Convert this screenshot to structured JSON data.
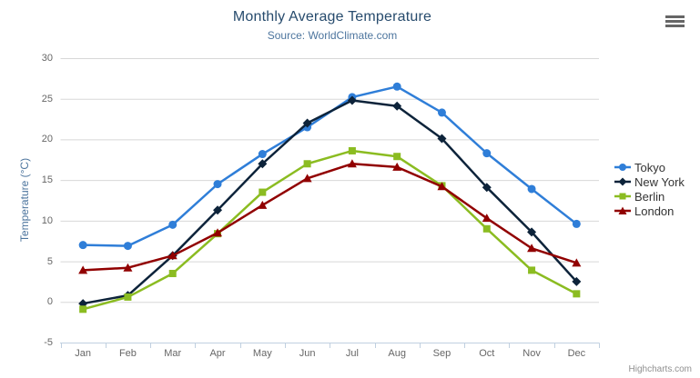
{
  "chart_data": {
    "type": "line",
    "title": "Monthly Average Temperature",
    "subtitle": "Source: WorldClimate.com",
    "categories": [
      "Jan",
      "Feb",
      "Mar",
      "Apr",
      "May",
      "Jun",
      "Jul",
      "Aug",
      "Sep",
      "Oct",
      "Nov",
      "Dec"
    ],
    "series": [
      {
        "name": "Tokyo",
        "color": "#2f7ed8",
        "marker": "circle",
        "values": [
          7.0,
          6.9,
          9.5,
          14.5,
          18.2,
          21.5,
          25.2,
          26.5,
          23.3,
          18.3,
          13.9,
          9.6
        ]
      },
      {
        "name": "New York",
        "color": "#0d233a",
        "marker": "diamond",
        "values": [
          -0.2,
          0.8,
          5.7,
          11.3,
          17.0,
          22.0,
          24.8,
          24.1,
          20.1,
          14.1,
          8.6,
          2.5
        ]
      },
      {
        "name": "Berlin",
        "color": "#8bbc21",
        "marker": "square",
        "values": [
          -0.9,
          0.6,
          3.5,
          8.4,
          13.5,
          17.0,
          18.6,
          17.9,
          14.3,
          9.0,
          3.9,
          1.0
        ]
      },
      {
        "name": "London",
        "color": "#910000",
        "marker": "triangle",
        "values": [
          3.9,
          4.2,
          5.7,
          8.5,
          11.9,
          15.2,
          17.0,
          16.6,
          14.2,
          10.3,
          6.6,
          4.8
        ]
      }
    ],
    "xlabel": "",
    "ylabel": "Temperature (°C)",
    "ylim": [
      -5,
      30
    ],
    "ytick_interval": 5,
    "grid": true,
    "legend_position": "right",
    "colors": {
      "title": "#274b6d",
      "subtitle": "#4d759e",
      "axis_title": "#4d759e",
      "tick_label": "#666666",
      "legend_label": "#333333",
      "gridline": "#d8d8d8",
      "axis_line": "#c0d0e0",
      "credits": "#909090"
    }
  },
  "toolbar": {
    "export_menu_icon": "hamburger-menu-icon"
  },
  "credits": {
    "label": "Highcharts.com"
  }
}
